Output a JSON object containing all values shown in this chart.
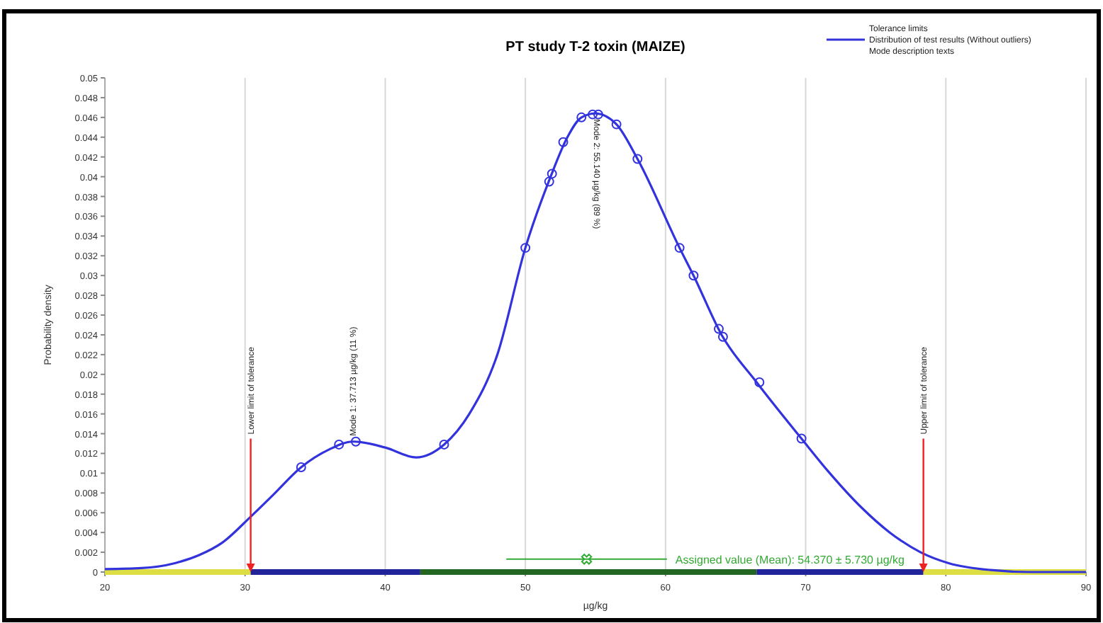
{
  "chart_data": {
    "type": "line",
    "title": "PT study T-2 toxin (MAIZE)",
    "xlabel": "µg/kg",
    "ylabel": "Probability density",
    "xlim": [
      20,
      90
    ],
    "xticks": [
      20,
      30,
      40,
      50,
      60,
      70,
      80,
      90
    ],
    "ylim": [
      0,
      0.05
    ],
    "yticks": [
      0,
      0.002,
      0.004,
      0.006,
      0.008,
      0.01,
      0.012,
      0.014,
      0.016,
      0.018,
      0.02,
      0.022,
      0.024,
      0.026,
      0.028,
      0.03,
      0.032,
      0.034,
      0.036,
      0.038,
      0.04,
      0.042,
      0.044,
      0.046,
      0.048,
      0.05
    ],
    "grid": "x",
    "legend": "top right",
    "series": [
      {
        "color": "#dddd44",
        "x": [
          20,
          30.4
        ],
        "values": [
          0,
          0
        ]
      },
      {
        "color": "#222299",
        "x": [
          30.4,
          42.5
        ],
        "values": [
          0,
          0
        ]
      },
      {
        "color": "#226622",
        "x": [
          42.5,
          66.5
        ],
        "values": [
          0,
          0
        ]
      },
      {
        "color": "#222299",
        "x": [
          66.5,
          78.4
        ],
        "values": [
          0,
          0
        ]
      },
      {
        "color": "#dddd44",
        "x": [
          78.4,
          90
        ],
        "values": [
          0,
          0
        ]
      },
      {
        "name": "Distribution of test results (Without outliers)",
        "color": "#3333dd",
        "marker": "none",
        "x": [
          20,
          22.6,
          25,
          26.7,
          28.4,
          30.4,
          32,
          34,
          36,
          37.7,
          40,
          42.2,
          44.2,
          46,
          48,
          50,
          51.8,
          53,
          54,
          55,
          56.5,
          58,
          61,
          62,
          64,
          66.5,
          69.7,
          71.6,
          74,
          76,
          78.2,
          80.2,
          83.2,
          86,
          90
        ],
        "values": [
          0.0003,
          0.0004,
          0.0009,
          0.0017,
          0.003,
          0.0056,
          0.0078,
          0.0106,
          0.0124,
          0.0132,
          0.0126,
          0.0116,
          0.0129,
          0.016,
          0.022,
          0.0328,
          0.04,
          0.044,
          0.046,
          0.0464,
          0.0453,
          0.0418,
          0.0328,
          0.03,
          0.024,
          0.0192,
          0.0135,
          0.0102,
          0.0065,
          0.004,
          0.002,
          0.0009,
          0.0002,
          0,
          0
        ]
      },
      {
        "color": "#3333dd",
        "type": "scatter",
        "marker": "circle",
        "x": [
          34,
          36.7,
          37.9,
          44.2,
          50,
          51.7,
          51.9,
          52.7,
          54,
          54.8,
          55.2,
          56.5,
          58,
          61,
          62,
          63.8,
          64.1,
          66.7,
          69.7
        ],
        "values": [
          0.0106,
          0.0129,
          0.0132,
          0.0129,
          0.0328,
          0.0395,
          0.0403,
          0.0435,
          0.046,
          0.0463,
          0.0463,
          0.0453,
          0.0418,
          0.0328,
          0.03,
          0.0246,
          0.0238,
          0.0192,
          0.0135
        ]
      },
      {
        "name": "Assigned value (Mean): 54.370 ± 5.730 µg/kg",
        "color": "#33aa33",
        "type": "scatter",
        "marker": "cross",
        "x": [
          54.37
        ],
        "values": [
          0.0013
        ],
        "xerrors": [
          5.73
        ]
      }
    ],
    "ref_lines": [
      {
        "axis": "x",
        "value": 30.4,
        "label": "Lower limit of tolerance",
        "color": "#ee2222"
      },
      {
        "axis": "x",
        "value": 78.4,
        "label": "Upper limit of tolerance",
        "color": "#ee2222"
      }
    ],
    "annotations": [
      "Tolerance limits",
      "Mode description texts",
      {
        "text": "Mode 1: 37.713 µg/kg (11 %)",
        "x": 37.7,
        "y": 0.0132
      },
      {
        "text": "Mode 2: 55.140 µg/kg (89 %)",
        "x": 55.1,
        "y": 0.0464
      }
    ]
  }
}
